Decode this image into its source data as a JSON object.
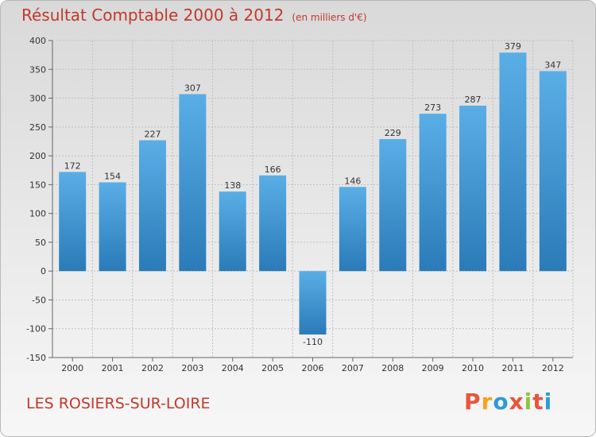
{
  "header": {
    "title": "Résultat Comptable 2000 à 2012",
    "subtitle": "(en milliers d'€)"
  },
  "footer": {
    "place": "LES ROSIERS-SUR-LOIRE",
    "logo_text": "Proxiti",
    "logo_colors": [
      "#e8553a",
      "#f4a21f",
      "#2f9ad6",
      "#e8553a",
      "#8cc63f",
      "#e8553a",
      "#2f9ad6"
    ]
  },
  "colors": {
    "bar_top": "#5aaee6",
    "bar_bottom": "#2a7bb8",
    "title": "#c0392b"
  },
  "chart_data": {
    "type": "bar",
    "categories": [
      "2000",
      "2001",
      "2002",
      "2003",
      "2004",
      "2005",
      "2006",
      "2007",
      "2008",
      "2009",
      "2010",
      "2011",
      "2012"
    ],
    "values": [
      172,
      154,
      227,
      307,
      138,
      166,
      -110,
      146,
      229,
      273,
      287,
      379,
      347
    ],
    "ylim": [
      -150,
      400
    ],
    "yticks": [
      400,
      350,
      300,
      250,
      200,
      150,
      100,
      50,
      0,
      -50,
      -100,
      -150
    ],
    "grid": true
  }
}
